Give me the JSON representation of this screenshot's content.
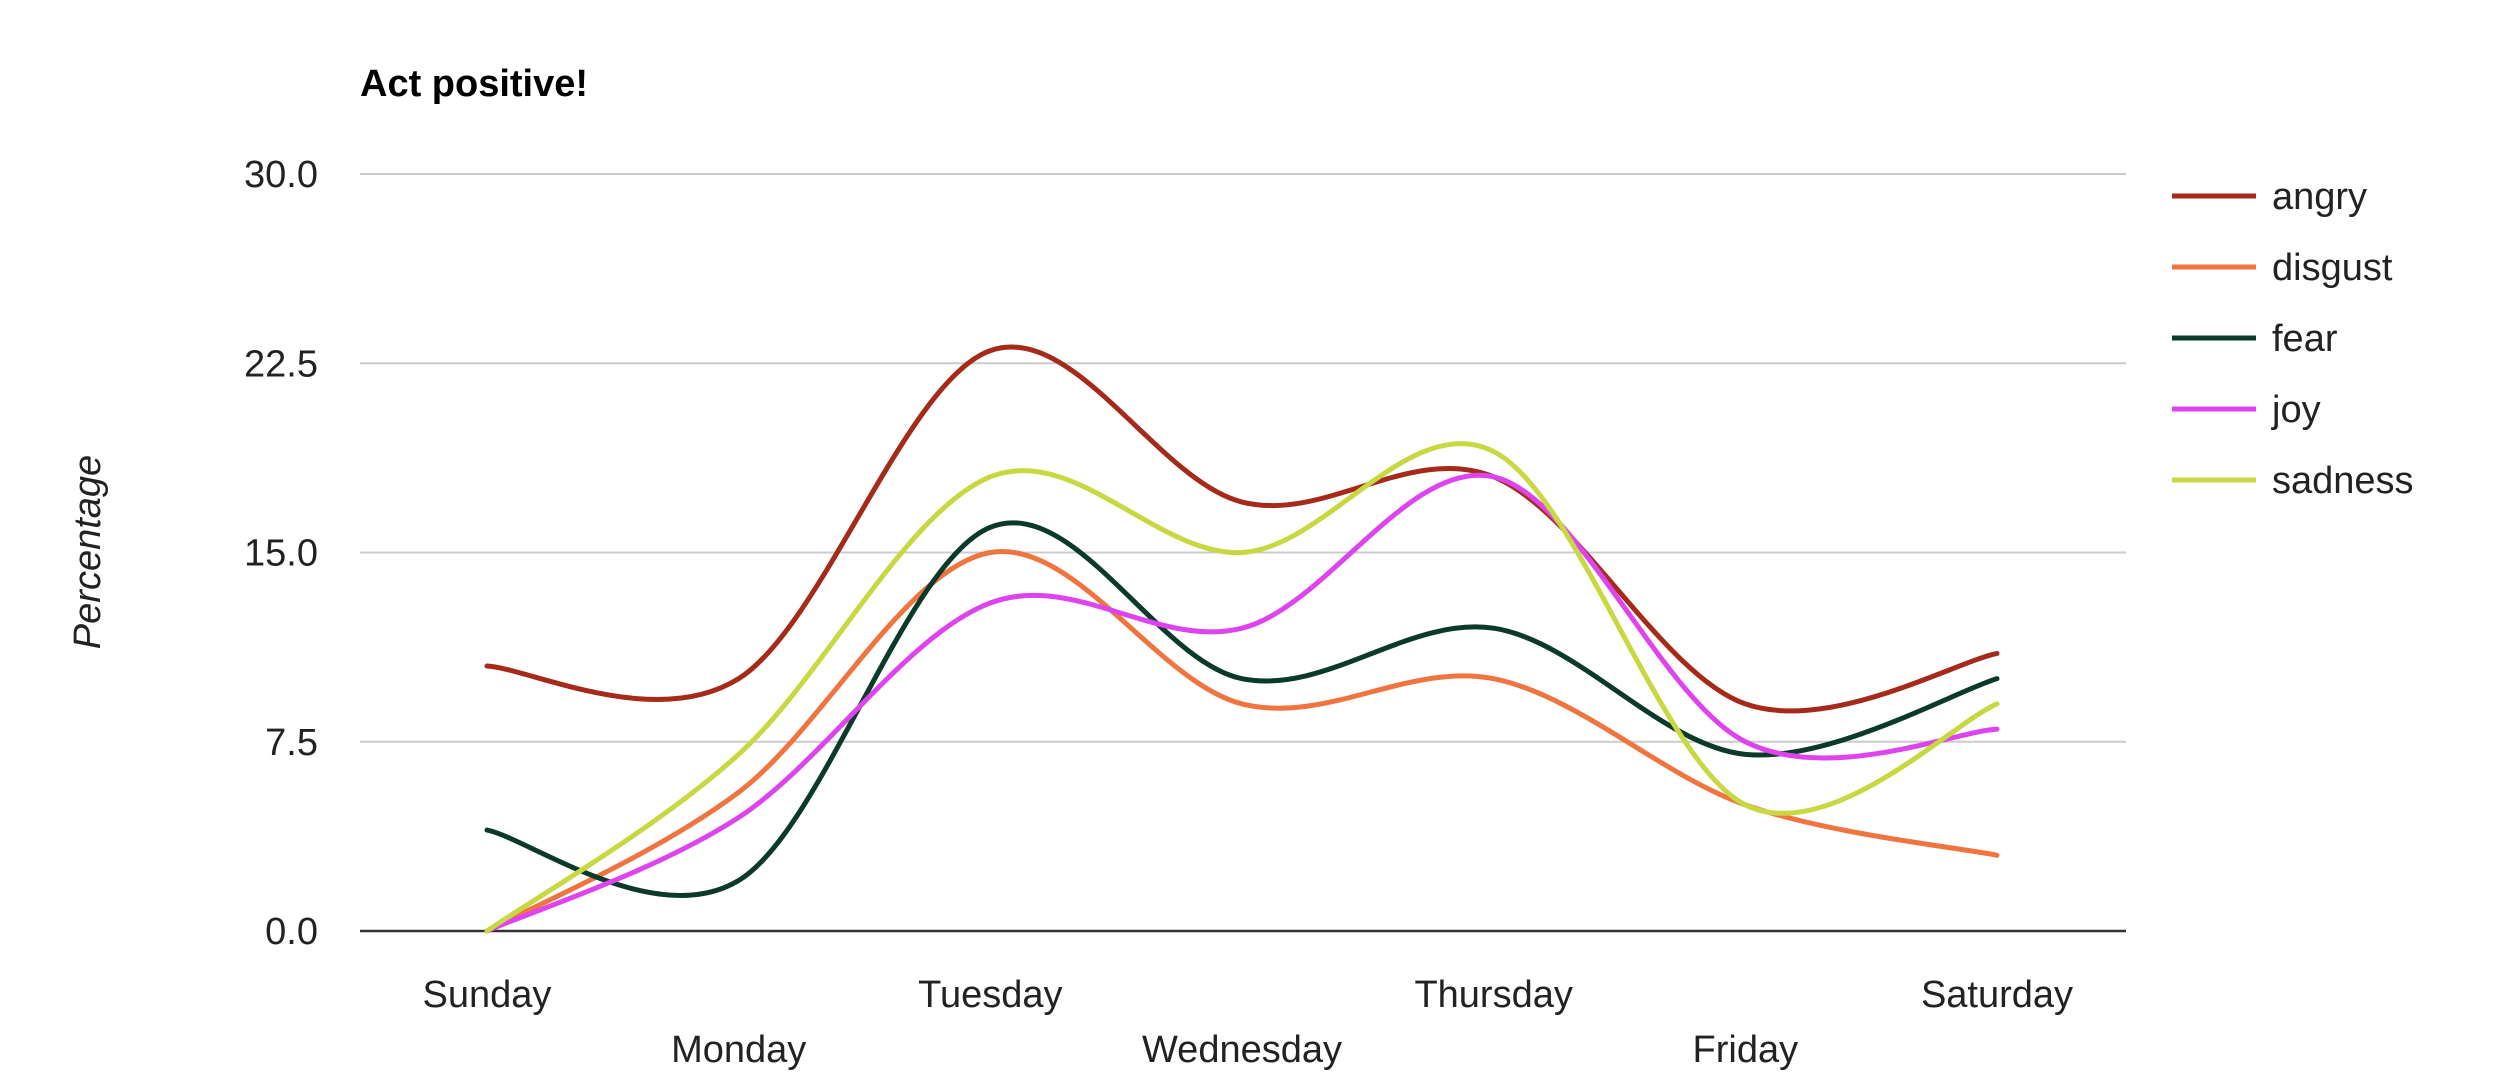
{
  "chart_data": {
    "type": "line",
    "title": "Act positive!",
    "xlabel": "",
    "ylabel": "Percentage",
    "categories": [
      "Sunday",
      "Monday",
      "Tuesday",
      "Wednesday",
      "Thursday",
      "Friday",
      "Saturday"
    ],
    "ylim": [
      0,
      30
    ],
    "yticks": [
      "0.0",
      "7.5",
      "15.0",
      "22.5",
      "30.0"
    ],
    "grid": true,
    "curve": "smooth",
    "legend_position": "right",
    "series": [
      {
        "name": "angry",
        "color": "#a52a1a",
        "values": [
          10.5,
          10.0,
          23.0,
          17.0,
          18.0,
          9.0,
          11.0
        ]
      },
      {
        "name": "disgust",
        "color": "#ef7440",
        "values": [
          0.0,
          5.5,
          15.0,
          9.0,
          10.0,
          5.0,
          3.0
        ]
      },
      {
        "name": "fear",
        "color": "#0b3a2a",
        "values": [
          4.0,
          2.0,
          16.0,
          10.0,
          12.0,
          7.0,
          10.0
        ]
      },
      {
        "name": "joy",
        "color": "#dd44ee",
        "values": [
          0.0,
          4.5,
          13.0,
          12.0,
          18.0,
          7.5,
          8.0
        ]
      },
      {
        "name": "sadness",
        "color": "#c8d840",
        "values": [
          0.0,
          7.0,
          18.0,
          15.0,
          19.0,
          5.0,
          9.0
        ]
      }
    ]
  }
}
